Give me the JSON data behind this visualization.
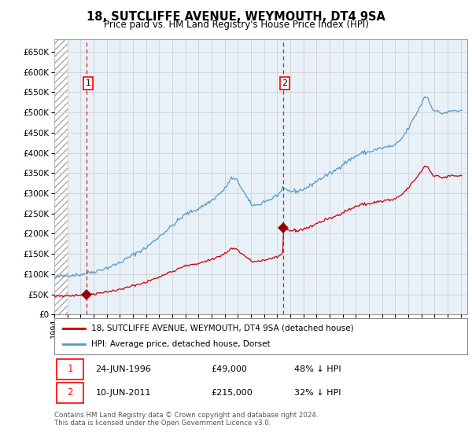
{
  "title": "18, SUTCLIFFE AVENUE, WEYMOUTH, DT4 9SA",
  "subtitle": "Price paid vs. HM Land Registry's House Price Index (HPI)",
  "hpi_label": "HPI: Average price, detached house, Dorset",
  "property_label": "18, SUTCLIFFE AVENUE, WEYMOUTH, DT4 9SA (detached house)",
  "footer": "Contains HM Land Registry data © Crown copyright and database right 2024.\nThis data is licensed under the Open Government Licence v3.0.",
  "sale1_label": "1",
  "sale1_date": "24-JUN-1996",
  "sale1_price": "£49,000",
  "sale1_hpi": "48% ↓ HPI",
  "sale2_label": "2",
  "sale2_date": "10-JUN-2011",
  "sale2_price": "£215,000",
  "sale2_hpi": "32% ↓ HPI",
  "sale1_x": 1996.46,
  "sale1_y": 49000,
  "sale2_x": 2011.44,
  "sale2_y": 215000,
  "property_color": "#cc0000",
  "hpi_color": "#5599cc",
  "sale_marker_color": "#990000",
  "ylim_min": 0,
  "ylim_max": 680000,
  "yticks": [
    0,
    50000,
    100000,
    150000,
    200000,
    250000,
    300000,
    350000,
    400000,
    450000,
    500000,
    550000,
    600000,
    650000
  ],
  "xlabel_min": 1994,
  "xlabel_max": 2025.5,
  "grid_color": "#cccccc",
  "plot_bg": "#e8f0f8"
}
